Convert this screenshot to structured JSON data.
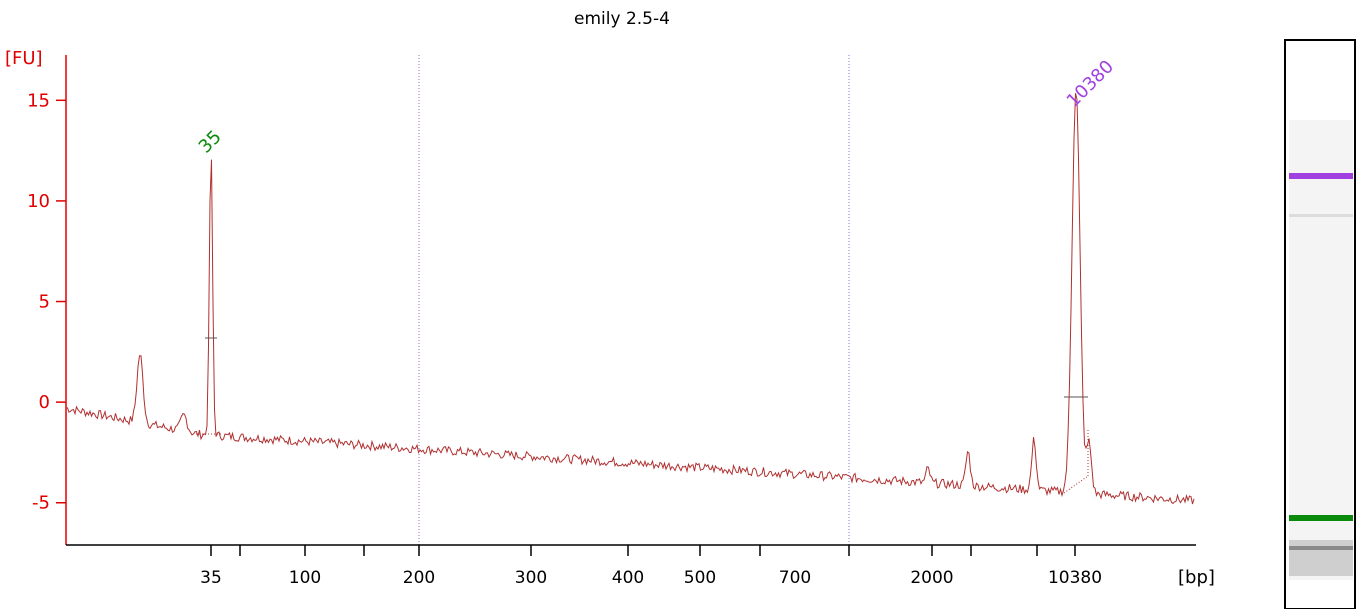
{
  "chart_data": {
    "type": "line",
    "title": "emily 2.5-4",
    "ylabel": "[FU]",
    "xlabel": "[bp]",
    "ylim": [
      -7,
      18
    ],
    "yticks": [
      15,
      10,
      5,
      0,
      -5
    ],
    "xtick_labels": [
      "35",
      "100",
      "200",
      "300",
      "400",
      "500",
      "700",
      "2000",
      "10380"
    ],
    "grid": false,
    "colors": {
      "axis_y": "#e00000",
      "axis_x": "#000000",
      "trace": "#b03030",
      "marker_lower": "#0a8a0a",
      "marker_upper": "#a040e0",
      "gel_dashed_lines": "#7777dd"
    },
    "series": [
      {
        "peaks": [
          {
            "label": "35",
            "color": "#0a8a0a",
            "height": 12.5
          },
          {
            "label": "10380",
            "color": "#a040e0",
            "height": 15.6
          }
        ]
      }
    ]
  },
  "gel": {
    "bands": [
      {
        "name": "upper-marker",
        "color": "#a040e0"
      },
      {
        "name": "lower-marker",
        "color": "#0a8a0a"
      }
    ]
  }
}
